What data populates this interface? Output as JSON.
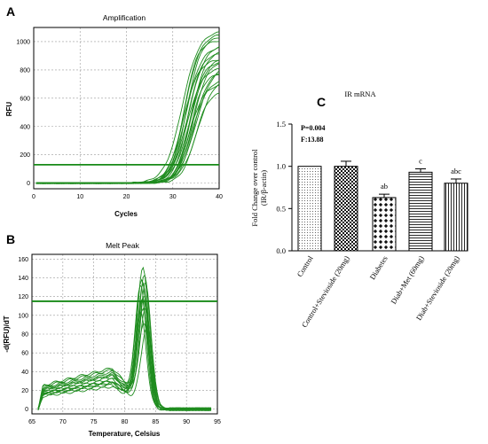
{
  "panels": {
    "a": "A",
    "b": "B",
    "c": "C"
  },
  "chart_data": [
    {
      "type": "line",
      "title": "Amplification",
      "xlabel": "Cycles",
      "ylabel": "RFU",
      "xlim": [
        0,
        40
      ],
      "ylim": [
        -40,
        1100
      ],
      "xticks": [
        0,
        10,
        20,
        30,
        40
      ],
      "yticks": [
        0,
        200,
        400,
        600,
        800,
        1000
      ],
      "grid": true,
      "threshold": 130,
      "series_shape": "sigmoid",
      "curve_plateaus": [
        1080,
        1060,
        1040,
        1010,
        990,
        970,
        940,
        920,
        900,
        880,
        870,
        860,
        840,
        820,
        800,
        780,
        760,
        740,
        700,
        650
      ],
      "curve_midpoints": [
        32.0,
        32.6,
        33.0,
        32.4,
        33.4,
        32.8,
        34.0,
        33.2,
        33.8,
        32.2,
        34.4,
        33.6,
        35.0,
        33.0,
        34.6,
        33.8,
        35.4,
        34.2,
        33.6,
        34.8
      ],
      "colors": {
        "line": "#1f8c1f",
        "threshold": "#178a17"
      }
    },
    {
      "type": "line",
      "title": "Melt Peak",
      "xlabel": "Temperature, Celsius",
      "ylabel": "-d(RFU)/dT",
      "xlim": [
        65,
        95
      ],
      "ylim": [
        -5,
        165
      ],
      "xticks": [
        65,
        70,
        75,
        80,
        85,
        90,
        95
      ],
      "yticks": [
        0,
        20,
        40,
        60,
        80,
        100,
        120,
        140,
        160
      ],
      "grid": true,
      "threshold": 115,
      "series_shape": "melt peak",
      "peak_heights": [
        157,
        150,
        143,
        140,
        137,
        133,
        128,
        124,
        120,
        115,
        110,
        104,
        98,
        94
      ],
      "peak_positions": [
        83.0,
        83.2,
        82.8,
        83.4,
        83.0,
        82.6,
        83.2,
        83.0,
        82.8,
        83.4,
        83.0,
        82.6,
        83.2,
        83.6
      ],
      "shoulder_heights": [
        40,
        36,
        42,
        30,
        34,
        28,
        38,
        32,
        26,
        44,
        30,
        24,
        36,
        28
      ],
      "colors": {
        "line": "#1f8c1f",
        "threshold": "#178a17"
      }
    },
    {
      "type": "bar",
      "title": "IR mRNA",
      "ylabel": "Fold Change over control\n(IR/β-actin)",
      "ylim": [
        0,
        1.5
      ],
      "yticks": [
        "0.0",
        "0.5",
        "1.0",
        "1.5"
      ],
      "categories": [
        "Control",
        "Control+Stevioside (20mg)",
        "Diabetes",
        "Diab+Met (60mg)",
        "Diab+Stevioside (20mg)"
      ],
      "values": [
        1.0,
        1.0,
        0.63,
        0.93,
        0.8
      ],
      "errors": [
        0,
        0.06,
        0.04,
        0.04,
        0.05
      ],
      "sig_labels": [
        "",
        "",
        "ab",
        "c",
        "abc"
      ],
      "patterns": [
        "dots",
        "checker",
        "diamond-grid",
        "horizontal-lines",
        "vertical-lines"
      ],
      "stats": {
        "p": "P=0.004",
        "f": "F:13.88"
      }
    }
  ]
}
